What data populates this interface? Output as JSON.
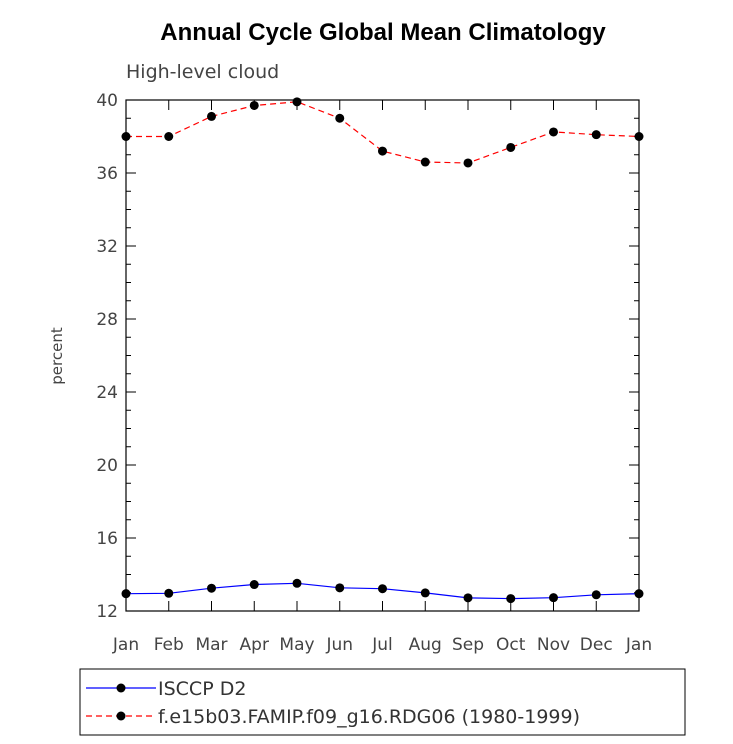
{
  "chart_data": {
    "type": "line",
    "title": "Annual Cycle Global Mean Climatology",
    "subtitle": "High-level cloud",
    "xlabel": "",
    "ylabel": "percent",
    "categories": [
      "Jan",
      "Feb",
      "Mar",
      "Apr",
      "May",
      "Jun",
      "Jul",
      "Aug",
      "Sep",
      "Oct",
      "Nov",
      "Dec",
      "Jan"
    ],
    "ylim": [
      12,
      40
    ],
    "yticks": [
      12,
      16,
      20,
      24,
      28,
      32,
      36,
      40
    ],
    "series": [
      {
        "name": "ISCCP D2",
        "color": "#0000ff",
        "dash": "solid",
        "values": [
          12.95,
          12.97,
          13.25,
          13.45,
          13.52,
          13.27,
          13.22,
          12.99,
          12.72,
          12.68,
          12.73,
          12.89,
          12.95
        ]
      },
      {
        "name": "f.e15b03.FAMIP.f09_g16.RDG06 (1980-1999)",
        "color": "#ff0000",
        "dash": "dashed",
        "values": [
          38.0,
          38.0,
          39.1,
          39.7,
          39.9,
          39.0,
          37.2,
          36.6,
          36.55,
          37.4,
          38.25,
          38.1,
          38.0
        ]
      }
    ],
    "grid": false,
    "legend_position": "bottom-left"
  }
}
